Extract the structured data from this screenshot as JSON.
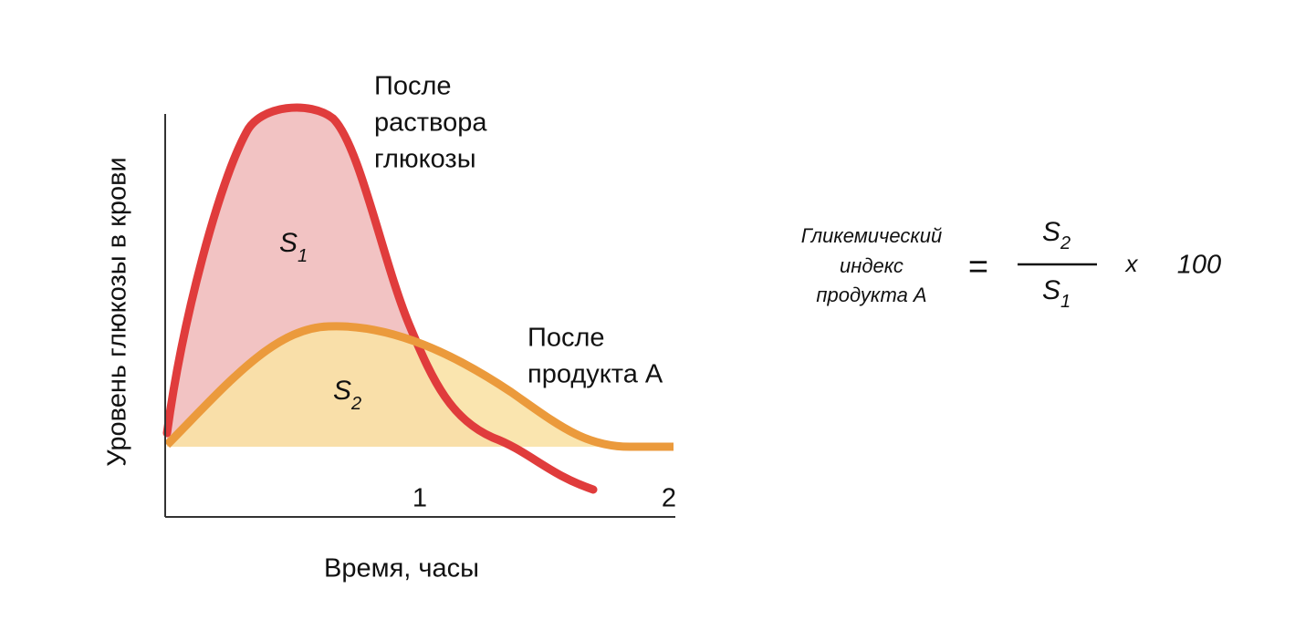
{
  "diagram": {
    "y_axis_label": "Уровень глюкозы в крови",
    "x_axis_label": "Время, часы",
    "x_ticks": [
      "1",
      "2"
    ],
    "curves": [
      {
        "label_lines": [
          "После",
          "раствора",
          "глюкозы"
        ],
        "color": "#e03c3c",
        "area": {
          "symbol": "S",
          "subscript": "1"
        }
      },
      {
        "label_lines": [
          "После",
          "продукта А"
        ],
        "color": "#eb9a3c",
        "area": {
          "symbol": "S",
          "subscript": "2"
        }
      }
    ],
    "formula": {
      "name_lines": [
        "Гликемический",
        "индекс",
        "продукта А"
      ],
      "equals": "=",
      "numerator": {
        "symbol": "S",
        "subscript": "2"
      },
      "denominator": {
        "symbol": "S",
        "subscript": "1"
      },
      "times": "x",
      "factor": "100"
    }
  }
}
